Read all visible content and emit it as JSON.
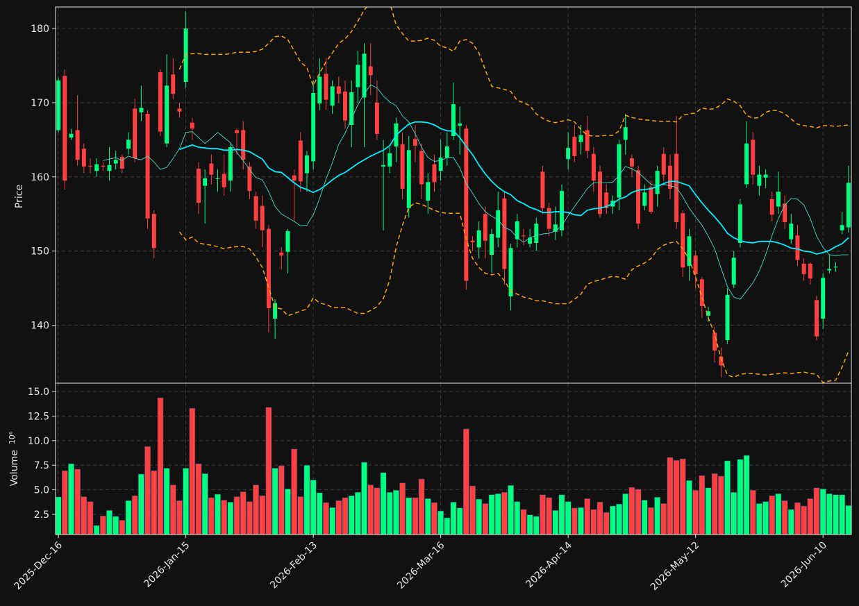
{
  "chart_data": {
    "type": "candlestick",
    "ylabel": "Price",
    "volume_ylabel": "Volume",
    "volume_scale_label": "10⁶",
    "up_color": "#00ff7f",
    "down_color": "#ff4040",
    "grid": true,
    "ylim": [
      132.2,
      182.9
    ],
    "yticks": [
      140,
      150,
      160,
      170,
      180
    ],
    "volume_ylim": [
      0.45,
      15.85
    ],
    "volume_yticks": [
      {
        "value": 2.5,
        "label": "2.5"
      },
      {
        "value": 5,
        "label": "5.0"
      },
      7.5,
      {
        "value": 10,
        "label": "10.0"
      },
      12.5,
      {
        "value": 15,
        "label": "15.0"
      }
    ],
    "categories": [
      "2025-Dec-16",
      null,
      null,
      null,
      null,
      null,
      null,
      null,
      null,
      null,
      null,
      null,
      null,
      null,
      null,
      null,
      null,
      null,
      null,
      null,
      "2026-Jan-15",
      null,
      null,
      null,
      null,
      null,
      null,
      null,
      null,
      null,
      null,
      null,
      null,
      null,
      null,
      null,
      null,
      null,
      null,
      null,
      "2026-Feb-13",
      null,
      null,
      null,
      null,
      null,
      null,
      null,
      null,
      null,
      null,
      null,
      null,
      null,
      null,
      null,
      null,
      null,
      null,
      null,
      "2026-Mar-16",
      null,
      null,
      null,
      null,
      null,
      null,
      null,
      null,
      null,
      null,
      null,
      null,
      null,
      null,
      null,
      null,
      null,
      null,
      null,
      "2026-Apr-14",
      null,
      null,
      null,
      null,
      null,
      null,
      null,
      null,
      null,
      null,
      null,
      null,
      null,
      null,
      null,
      null,
      null,
      null,
      null,
      "2026-May-12",
      null,
      null,
      null,
      null,
      null,
      null,
      null,
      null,
      null,
      null,
      null,
      null,
      null,
      null,
      null,
      null,
      null,
      null,
      null,
      "2026-Jun-10",
      null,
      null,
      null,
      null
    ],
    "open": [
      166.3,
      173.6,
      165.3,
      166.3,
      163.8,
      161.5,
      160.8,
      161.5,
      160.8,
      161.8,
      162.7,
      163.8,
      169.2,
      168.7,
      168.5,
      155,
      174.1,
      164.5,
      173.8,
      169.2,
      172.8,
      167.3,
      161.1,
      158.8,
      161.8,
      159.7,
      160.4,
      159.5,
      166.3,
      166.3,
      161.4,
      157.4,
      156.1,
      153,
      140.9,
      149.8,
      149.9,
      160.2,
      164.9,
      160.5,
      162.1,
      169.9,
      173.9,
      169.6,
      172.2,
      171.5,
      167.0,
      172.1,
      170.7,
      174.9,
      170,
      161.4,
      161.4,
      164.1,
      164.4,
      155.8,
      165.1,
      163.5,
      156.8,
      161.7,
      160.8,
      162.6,
      165.5,
      166.9,
      166.5,
      151.4,
      150.5,
      155,
      149.5,
      151.8,
      157.1,
      143.9,
      151.6,
      152.1,
      151,
      151.1,
      160.7,
      155.8,
      152.6,
      152.8,
      162.4,
      165.4,
      164.7,
      166.3,
      163.1,
      160.7,
      157.9,
      156,
      157.2,
      165,
      162.5,
      160.9,
      156.1,
      158.6,
      157.7,
      163.1,
      161.5,
      163.1,
      155.1,
      148,
      149.4,
      146.2,
      141.3,
      139,
      135.8,
      138,
      145.5,
      151.1,
      159,
      165,
      158.8,
      159.9,
      157,
      156,
      156.4,
      151.6,
      152.1,
      148.3,
      148.3,
      143.4,
      140.9,
      147.4,
      147.8,
      152.8,
      153.2
    ],
    "high": [
      173.4,
      174.5,
      166.5,
      171,
      164.5,
      162.5,
      162.5,
      162,
      164,
      163.5,
      163,
      166,
      170.5,
      172.3,
      169,
      155.5,
      174.5,
      176.5,
      176,
      170,
      182.3,
      168,
      162,
      161,
      163,
      161,
      163,
      164.5,
      166.5,
      167.5,
      162,
      158,
      157.5,
      153.5,
      143.5,
      150.5,
      153,
      161,
      166,
      163.5,
      173,
      176,
      176,
      173,
      173.5,
      173,
      173,
      177,
      178,
      178,
      173,
      165,
      164,
      168,
      166,
      165.5,
      167,
      164.5,
      160.5,
      163,
      165,
      166,
      172.7,
      169.5,
      167,
      152,
      154,
      156,
      153,
      158,
      158,
      151,
      155,
      153,
      153,
      154.5,
      161.5,
      156.5,
      156,
      159,
      166,
      167,
      167,
      168.2,
      164,
      161.5,
      159,
      157.5,
      165,
      168.5,
      163,
      161.5,
      159,
      159.5,
      161.5,
      164,
      163,
      168.2,
      155.5,
      153,
      150,
      146.5,
      142.5,
      139.8,
      137,
      145,
      150,
      157,
      167.5,
      166,
      161.5,
      161,
      158,
      160.7,
      157.5,
      155,
      153.5,
      149,
      148.5,
      144,
      147,
      149.5,
      148.5,
      155.3,
      161.5
    ],
    "low": [
      166,
      158.3,
      165,
      161.5,
      160.5,
      160.5,
      160,
      160.8,
      159.5,
      161,
      160.5,
      163,
      162,
      167.5,
      153,
      149,
      165.5,
      164,
      170.5,
      168,
      172,
      165,
      155,
      153.7,
      159,
      158,
      157.5,
      158,
      163,
      161,
      157,
      153,
      150.5,
      139,
      138.2,
      147.5,
      147,
      154,
      158,
      158,
      161,
      169,
      169,
      168.5,
      170,
      166.5,
      164,
      170,
      164,
      171,
      165,
      152.8,
      160.5,
      162,
      157,
      154.5,
      162,
      157,
      155,
      158,
      159.5,
      161.5,
      165,
      163,
      144.8,
      150,
      149,
      149,
      147,
      150.5,
      145.5,
      142,
      150.5,
      150.8,
      150.5,
      150,
      155,
      152,
      151.5,
      152,
      161,
      162,
      163,
      162.5,
      158,
      154.5,
      155,
      155,
      155.5,
      163,
      160,
      153,
      155.5,
      155,
      156,
      159.5,
      157,
      153,
      146.5,
      146,
      145,
      141,
      140.5,
      135,
      133,
      137.5,
      145,
      150.5,
      158.5,
      159,
      157.5,
      158.5,
      154,
      155,
      153,
      151,
      148,
      146,
      145.5,
      138,
      139.5,
      147,
      147.2,
      152.3,
      152.5
    ],
    "close": [
      173,
      159.5,
      165.8,
      162.3,
      161.4,
      161.4,
      161.7,
      161.4,
      161.6,
      162.3,
      161.1,
      165,
      162.5,
      169.3,
      154.4,
      150.4,
      166.1,
      172.3,
      171.2,
      168.8,
      180,
      166.5,
      156.5,
      159.8,
      160.3,
      159.8,
      158.6,
      164,
      165.9,
      162.3,
      158.1,
      154.1,
      152.8,
      142.3,
      143,
      149.4,
      152.7,
      159.5,
      159.4,
      162.9,
      171.3,
      173.5,
      170.4,
      172.2,
      171.2,
      167.6,
      171.4,
      175.1,
      176.6,
      173.7,
      165.8,
      161.6,
      163.2,
      167.2,
      158.4,
      163.6,
      164.2,
      159,
      159.3,
      159.3,
      162.6,
      164.1,
      169.8,
      167.2,
      146,
      151.2,
      152.8,
      151.4,
      152.3,
      155.5,
      147.6,
      150.4,
      154,
      152,
      151.8,
      153.7,
      155.8,
      153,
      153.6,
      158.1,
      163.9,
      162.8,
      165.6,
      163.5,
      159.5,
      155,
      155.8,
      156.8,
      164.4,
      166.7,
      161.4,
      153.7,
      157.9,
      155.3,
      160.8,
      160.3,
      158.4,
      153.9,
      147.8,
      152,
      146.9,
      142.6,
      141.9,
      136.6,
      134.6,
      144.1,
      149.1,
      156.3,
      164.5,
      160.3,
      160.3,
      160.3,
      154.9,
      158,
      153.9,
      153.7,
      148.8,
      146.9,
      146.3,
      138.5,
      146.4,
      147.6,
      147.9,
      153.5,
      159.2
    ],
    "volume": [
      4.27,
      6.95,
      7.65,
      7.1,
      4.3,
      3.8,
      1.37,
      2.35,
      2.9,
      2.3,
      1.9,
      3.9,
      4.4,
      6.6,
      9.4,
      6.95,
      14.36,
      7.2,
      5.5,
      3.9,
      7.2,
      13.3,
      7.65,
      6.65,
      4.2,
      4.55,
      3.95,
      3.75,
      4.3,
      4.8,
      3.8,
      5.5,
      4.4,
      13.4,
      7.2,
      7.45,
      5.1,
      9.15,
      4.3,
      7.5,
      6.0,
      4.7,
      3.7,
      3.2,
      3.9,
      4.2,
      4.4,
      4.75,
      7.8,
      5.5,
      5.2,
      6.75,
      4.75,
      4.95,
      5.7,
      4.2,
      4.2,
      6.1,
      4.1,
      3.7,
      2.85,
      2.15,
      3.75,
      3.15,
      11.2,
      5.4,
      4.05,
      3.6,
      4.5,
      4.6,
      4.75,
      5.45,
      3.8,
      3.0,
      2.45,
      2.3,
      4.5,
      4.2,
      2.9,
      4.5,
      3.8,
      3.15,
      3.2,
      4.1,
      3.0,
      3.75,
      2.7,
      3.35,
      3.55,
      4.6,
      5.25,
      5.05,
      3.95,
      3.2,
      4.25,
      3.6,
      8.3,
      8.0,
      8.15,
      5.95,
      4.95,
      6.45,
      5.2,
      6.65,
      6.4,
      7.95,
      4.75,
      8.1,
      8.5,
      4.95,
      3.6,
      3.8,
      4.4,
      4.6,
      3.9,
      3.0,
      3.7,
      3.35,
      4.1,
      5.2,
      5.1,
      4.6,
      4.5,
      4.5,
      3.4
    ],
    "series": [
      {
        "color": "#40e0d0",
        "width": 0.9,
        "dashed": false,
        "values": [
          null,
          null,
          null,
          null,
          null,
          null,
          null,
          162.2,
          162.4,
          162.6,
          162.2,
          162.8,
          162.5,
          162.3,
          162.8,
          162.0,
          161.0,
          161.3,
          162.5,
          163.8,
          166.0,
          166.1,
          165.3,
          164.5,
          165.2,
          166.0,
          165.3,
          164.6,
          163.3,
          162.2,
          161.0,
          159.9,
          159.6,
          158.0,
          156.0,
          155.0,
          154.5,
          154.0,
          153.4,
          153.5,
          154.9,
          157.1,
          159.7,
          161.9,
          164.4,
          165.9,
          167.8,
          169.7,
          171.2,
          172.4,
          172.0,
          170.9,
          170.1,
          169.6,
          168.2,
          167.4,
          165.8,
          164.0,
          162.6,
          162.1,
          162.2,
          162.6,
          162.6,
          161.2,
          159.1,
          157.8,
          156.4,
          155.3,
          154.7,
          154.2,
          153.2,
          152.8,
          151.8,
          151.2,
          151.8,
          152.1,
          152.3,
          152.4,
          152.7,
          153.4,
          154.8,
          156.0,
          157.2,
          158.4,
          159.2,
          159.2,
          159.2,
          159.3,
          160.2,
          161.4,
          161.1,
          160.6,
          159.8,
          159.0,
          158.8,
          159.0,
          158.8,
          158.6,
          157.3,
          155.8,
          154.6,
          153.5,
          152.0,
          150.3,
          147.7,
          145.2,
          143.8,
          143.5,
          144.6,
          145.7,
          147.3,
          149.5,
          152.1,
          154.4,
          156.2,
          157.1,
          157.0,
          156.2,
          154.4,
          152.0,
          150.5,
          149.5,
          149.4,
          149.5,
          149.5
        ]
      },
      {
        "color": "#00eeff",
        "width": 1.8,
        "dashed": false,
        "values": [
          null,
          null,
          null,
          null,
          null,
          null,
          null,
          null,
          null,
          null,
          null,
          null,
          null,
          null,
          null,
          null,
          null,
          null,
          null,
          163.7,
          164.0,
          164.3,
          164.0,
          163.9,
          163.8,
          163.8,
          163.6,
          163.6,
          163.7,
          163.6,
          163.4,
          162.9,
          162.4,
          161.2,
          160.7,
          160.6,
          159.9,
          159.2,
          158.6,
          158.3,
          157.9,
          158.3,
          158.9,
          159.6,
          160.2,
          160.6,
          161.2,
          161.8,
          162.3,
          162.8,
          163.2,
          163.6,
          164.2,
          165.6,
          166.4,
          167.1,
          167.4,
          167.4,
          167.3,
          167.0,
          166.5,
          166.2,
          166.2,
          165.3,
          164.1,
          163.0,
          161.6,
          160.4,
          159.4,
          158.6,
          158.0,
          157.6,
          156.8,
          156.4,
          155.9,
          155.6,
          155.2,
          155.2,
          155.3,
          155.3,
          155.2,
          154.9,
          154.8,
          155.5,
          155.7,
          155.8,
          156.0,
          156.4,
          157.0,
          157.3,
          157.9,
          158.2,
          158.3,
          158.4,
          158.7,
          159.1,
          159.4,
          159.4,
          159.1,
          158.8,
          157.6,
          156.5,
          155.5,
          154.6,
          153.6,
          152.4,
          151.8,
          151.4,
          151.2,
          151.1,
          151.3,
          151.3,
          151.3,
          151.1,
          150.8,
          150.4,
          150.3,
          150.0,
          149.9,
          149.6,
          149.8,
          150.1,
          150.6,
          151.0,
          151.8
        ]
      },
      {
        "color": "#ffa500",
        "width": 1.5,
        "dashed": true,
        "values": [
          null,
          null,
          null,
          null,
          null,
          null,
          null,
          null,
          null,
          null,
          null,
          null,
          null,
          null,
          null,
          null,
          null,
          null,
          null,
          174.5,
          176.5,
          176.6,
          176.6,
          176.5,
          176.5,
          176.5,
          176.5,
          176.6,
          176.8,
          176.8,
          176.8,
          176.9,
          177.2,
          178.0,
          178.9,
          179.0,
          178.5,
          177.0,
          175.5,
          174.7,
          172.3,
          174.0,
          175.5,
          176.7,
          178.0,
          178.6,
          179.6,
          181.0,
          182.5,
          183.5,
          184.0,
          184.0,
          183.5,
          180.5,
          179.3,
          178.3,
          178.3,
          178.4,
          178.7,
          178.4,
          177.6,
          177.4,
          176.9,
          178.3,
          178.5,
          178.0,
          176.7,
          174.4,
          172.2,
          172.0,
          171.8,
          171.5,
          170.3,
          170.0,
          169.6,
          168.5,
          167.9,
          167.5,
          167.3,
          167.5,
          167.7,
          167.4,
          166.4,
          165.6,
          165.5,
          165.5,
          165.6,
          165.6,
          166.2,
          168.3,
          168.0,
          167.8,
          167.7,
          167.6,
          167.5,
          167.5,
          167.5,
          167.4,
          168.3,
          168.5,
          168.6,
          169.3,
          169.1,
          169.2,
          169.7,
          170.5,
          170.2,
          169.6,
          168.3,
          167.9,
          168.0,
          168.7,
          169.0,
          168.9,
          168.5,
          167.8,
          167.1,
          166.9,
          166.8,
          166.6,
          166.9,
          166.9,
          166.8,
          166.9,
          167.0
        ]
      },
      {
        "color": "#ffa500",
        "width": 1.5,
        "dashed": true,
        "values": [
          null,
          null,
          null,
          null,
          null,
          null,
          null,
          null,
          null,
          null,
          null,
          null,
          null,
          null,
          null,
          null,
          null,
          null,
          null,
          152.6,
          151.5,
          151.9,
          151.1,
          150.9,
          150.8,
          150.6,
          150.3,
          150.5,
          150.6,
          150.6,
          150.3,
          149.2,
          147.8,
          145.1,
          142.4,
          142.2,
          141.3,
          141.6,
          141.9,
          142.2,
          143.7,
          143.0,
          142.8,
          142.4,
          142.4,
          142.4,
          142.0,
          141.6,
          141.6,
          142.0,
          142.5,
          143.6,
          146.1,
          150.5,
          153.5,
          155.9,
          156.5,
          156.3,
          155.9,
          155.5,
          155.2,
          155.1,
          155.1,
          155.1,
          151.6,
          149.0,
          147.8,
          147.0,
          146.8,
          147.0,
          146.0,
          144.6,
          144.2,
          143.8,
          143.6,
          143.3,
          143.3,
          143.1,
          142.9,
          142.9,
          142.9,
          143.5,
          144.2,
          145.5,
          145.9,
          146.1,
          146.4,
          146.6,
          146.5,
          146.2,
          147.5,
          148.0,
          148.4,
          149.0,
          150.2,
          150.8,
          151.1,
          151.3,
          150.3,
          148.9,
          146.5,
          143.8,
          141.0,
          138.8,
          135.5,
          133.3,
          133.0,
          133.4,
          133.5,
          133.5,
          133.4,
          133.3,
          133.4,
          133.5,
          133.6,
          133.5,
          133.6,
          133.7,
          133.5,
          133.4,
          132.3,
          132.5,
          132.6,
          134.4,
          136.5
        ]
      }
    ]
  }
}
